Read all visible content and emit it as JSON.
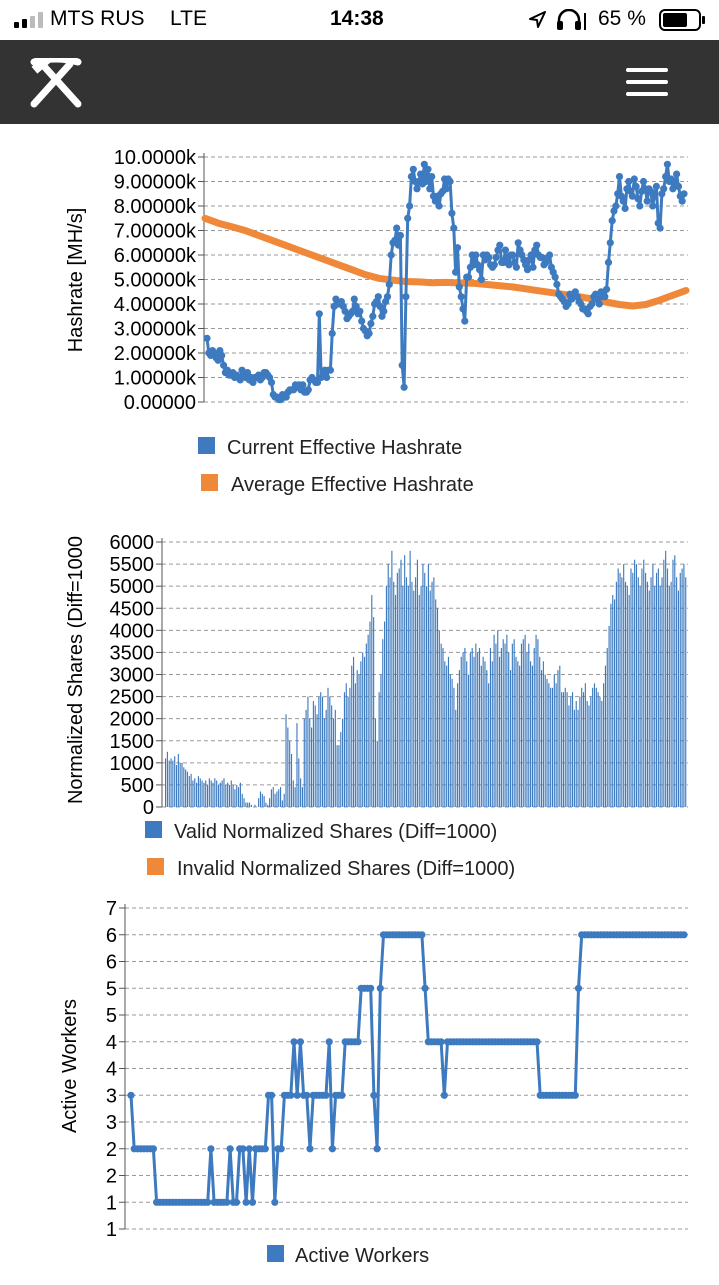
{
  "status_bar": {
    "carrier": "MTS RUS",
    "network": "LTE",
    "time": "14:38",
    "battery": "65 %"
  },
  "nav": {
    "logo_icon": "pickaxe-hammer-icon",
    "menu_icon": "hamburger-menu-icon",
    "background": "#333333"
  },
  "colors": {
    "blue": "#3d7abf",
    "orange": "#f0883a",
    "grid": "#9a9a9a"
  },
  "charts": [
    {
      "ylabel": "Hashrate [MH/s]",
      "ticks": [
        "0.00000",
        "1.00000k",
        "2.00000k",
        "3.00000k",
        "4.00000k",
        "5.00000k",
        "6.00000k",
        "7.00000k",
        "8.00000k",
        "9.00000k",
        "10.0000k"
      ],
      "legend": [
        "Current Effective Hashrate",
        "Average Effective Hashrate"
      ]
    },
    {
      "ylabel": "Normalized Shares (Diff=1000",
      "ticks": [
        "0",
        "500",
        "1000",
        "1500",
        "2000",
        "2500",
        "3000",
        "3500",
        "4000",
        "4500",
        "5000",
        "5500",
        "6000"
      ],
      "legend": [
        "Valid Normalized Shares (Diff=1000)",
        "Invalid Normalized Shares (Diff=1000)"
      ]
    },
    {
      "ylabel": "Active Workers",
      "ticks": [
        "1",
        "1",
        "2",
        "2",
        "3",
        "3",
        "4",
        "4",
        "5",
        "5",
        "6",
        "6",
        "7"
      ],
      "legend": [
        "Active Workers"
      ]
    }
  ],
  "chart_data": [
    {
      "type": "line",
      "ylabel": "Hashrate [MH/s]",
      "ylim": [
        0,
        10000
      ],
      "grid": true,
      "legend_position": "bottom",
      "series": [
        {
          "name": "Current Effective Hashrate",
          "color": "#3d7abf",
          "values": [
            2600,
            2000,
            1900,
            2100,
            2000,
            1800,
            1700,
            2100,
            1900,
            1500,
            1200,
            1300,
            1100,
            1100,
            1200,
            1000,
            1100,
            1000,
            900,
            1300,
            1100,
            1000,
            1200,
            900,
            1000,
            800,
            1000,
            1000,
            1100,
            900,
            1000,
            1200,
            1200,
            1100,
            1000,
            800,
            300,
            200,
            200,
            100,
            100,
            300,
            200,
            200,
            400,
            500,
            500,
            500,
            700,
            600,
            700,
            500,
            700,
            400,
            400,
            500,
            900,
            1000,
            900,
            800,
            800,
            3600,
            1000,
            1100,
            1300,
            1000,
            1300,
            1300,
            2800,
            3900,
            4200,
            4000,
            4000,
            4100,
            3900,
            3700,
            3400,
            3500,
            3600,
            3700,
            4200,
            3900,
            3600,
            3700,
            3300,
            3000,
            2900,
            2700,
            2800,
            3200,
            3500,
            4000,
            4100,
            4300,
            3900,
            3500,
            3700,
            4100,
            4300,
            4800,
            6000,
            6500,
            6600,
            7100,
            6400,
            6800,
            1500,
            600,
            4300,
            7500,
            8000,
            9200,
            9500,
            9000,
            8700,
            9000,
            9300,
            8900,
            9700,
            9000,
            9500,
            8700,
            9200,
            8400,
            8200,
            8400,
            8000,
            8500,
            8600,
            9100,
            8700,
            9100,
            9000,
            7700,
            7100,
            5300,
            6300,
            4700,
            4300,
            3800,
            3300,
            5100,
            5100,
            5500,
            6000,
            5600,
            6000,
            5600,
            5400,
            5000,
            6000,
            5800,
            6000,
            5900,
            5600,
            5500,
            5600,
            5900,
            6200,
            6400,
            5700,
            5700,
            6200,
            5900,
            5600,
            6000,
            6000,
            5700,
            5500,
            6500,
            6200,
            6000,
            5800,
            5600,
            5400,
            5800,
            6000,
            5500,
            6200,
            6400,
            6000,
            5900,
            5900,
            5600,
            5700,
            5900,
            6000,
            5500,
            5300,
            5100,
            4800,
            4400,
            4300,
            4200,
            4100,
            3900,
            4000,
            4400,
            4200,
            4400,
            4500,
            4300,
            4100,
            4000,
            3800,
            3800,
            3700,
            3600,
            3900,
            4000,
            4300,
            4400,
            4200,
            4000,
            4500,
            4300,
            4300,
            4600,
            5700,
            6500,
            7400,
            7800,
            8000,
            8500,
            9200,
            8400,
            8200,
            7900,
            8700,
            9000,
            8600,
            8400,
            9100,
            8800,
            8300,
            8000,
            8600,
            9000,
            8700,
            8200,
            8700,
            8600,
            8000,
            8400,
            8800,
            7300,
            7100,
            8500,
            8700,
            9200,
            9700,
            9000,
            9100,
            8700,
            8900,
            9300,
            8800,
            8400,
            8200,
            8500
          ]
        },
        {
          "name": "Average Effective Hashrate",
          "color": "#f0883a",
          "values": [
            7500,
            7300,
            7150,
            7000,
            6800,
            6600,
            6400,
            6200,
            6000,
            5800,
            5600,
            5400,
            5200,
            5050,
            4980,
            4920,
            4900,
            4870,
            4880,
            4860,
            4850,
            4800,
            4750,
            4700,
            4620,
            4540,
            4460,
            4380,
            4300,
            4200,
            4080,
            3980,
            3920,
            3980,
            4150,
            4350,
            4550
          ]
        }
      ]
    },
    {
      "type": "bar",
      "ylabel": "Normalized Shares (Diff=1000",
      "ylim": [
        0,
        6000
      ],
      "grid": true,
      "legend_position": "bottom",
      "series": [
        {
          "name": "Valid Normalized Shares (Diff=1000)",
          "color": "#3d7abf",
          "values": [
            1100,
            1250,
            1050,
            1100,
            1050,
            1150,
            950,
            1200,
            1000,
            1000,
            900,
            850,
            800,
            700,
            750,
            600,
            650,
            550,
            700,
            650,
            600,
            550,
            600,
            500,
            650,
            600,
            550,
            650,
            600,
            500,
            550,
            600,
            650,
            500,
            550,
            500,
            600,
            500,
            400,
            500,
            450,
            550,
            300,
            200,
            100,
            100,
            100,
            50,
            0,
            50,
            0,
            200,
            350,
            300,
            250,
            100,
            50,
            200,
            400,
            450,
            300,
            350,
            400,
            450,
            150,
            300,
            2100,
            1800,
            1500,
            1200,
            600,
            450,
            1900,
            1100,
            650,
            450,
            2000,
            2200,
            2500,
            2000,
            1800,
            2400,
            2300,
            2100,
            2500,
            2600,
            2500,
            2000,
            2200,
            2700,
            2500,
            2300,
            2000,
            2200,
            1400,
            1400,
            1700,
            2000,
            2600,
            2800,
            2500,
            2700,
            3200,
            3400,
            2800,
            3100,
            3000,
            3300,
            3500,
            3400,
            3700,
            3900,
            4200,
            4800,
            4300,
            2000,
            1500,
            2600,
            3000,
            3800,
            4200,
            5000,
            5500,
            5200,
            5800,
            5100,
            4800,
            5300,
            5400,
            5600,
            5000,
            5700,
            5200,
            5000,
            5800,
            5100,
            4900,
            5200,
            5600,
            4800,
            5000,
            5500,
            5300,
            5000,
            5500,
            4900,
            5100,
            5200,
            4700,
            4500,
            4000,
            3700,
            3600,
            3300,
            3200,
            3400,
            3000,
            2900,
            2700,
            2200,
            2800,
            3100,
            3400,
            3500,
            3600,
            3300,
            3000,
            3500,
            3600,
            3400,
            3700,
            3500,
            3600,
            3200,
            3400,
            3300,
            3100,
            2800,
            3600,
            3300,
            3900,
            3700,
            4000,
            3400,
            3600,
            3800,
            3700,
            3900,
            3500,
            3100,
            3700,
            3800,
            3400,
            3300,
            3200,
            3700,
            3800,
            3900,
            3500,
            3700,
            3300,
            3200,
            3600,
            3900,
            3800,
            3400,
            3100,
            3300,
            3000,
            2900,
            2800,
            2700,
            2700,
            3000,
            2800,
            3100,
            3200,
            2600,
            2600,
            2700,
            2600,
            2300,
            2500,
            2600,
            2200,
            2400,
            2200,
            2500,
            2700,
            2600,
            2800,
            2400,
            2300,
            2500,
            2700,
            2800,
            2700,
            2600,
            2500,
            2400,
            2800,
            3200,
            3600,
            4100,
            4600,
            4800,
            4700,
            5100,
            5400,
            5300,
            5200,
            5500,
            5100,
            5000,
            4800,
            5400,
            5300,
            5600,
            5500,
            5200,
            5000,
            5400,
            5600,
            5300,
            5100,
            4900,
            5200,
            5500,
            5000,
            5300,
            5400,
            5000,
            5200,
            5600,
            5800,
            5400,
            5000,
            5100,
            5600,
            5700,
            5200,
            4900,
            5300,
            5400,
            5500,
            5200
          ]
        },
        {
          "name": "Invalid Normalized Shares (Diff=1000)",
          "color": "#f0883a",
          "values": []
        }
      ]
    },
    {
      "type": "line",
      "ylabel": "Active Workers",
      "ylim": [
        0.5,
        6.5
      ],
      "grid": true,
      "legend_position": "bottom",
      "series": [
        {
          "name": "Active Workers",
          "color": "#3d7abf",
          "values": [
            3,
            2,
            2,
            2,
            2,
            2,
            2,
            2,
            1,
            1,
            1,
            1,
            1,
            1,
            1,
            1,
            1,
            1,
            1,
            1,
            1,
            1,
            1,
            1,
            1,
            2,
            1,
            1,
            1,
            1,
            1,
            2,
            1,
            1,
            2,
            2,
            1,
            2,
            1,
            2,
            2,
            2,
            2,
            3,
            3,
            1,
            2,
            2,
            3,
            3,
            3,
            4,
            3,
            4,
            3,
            3,
            2,
            3,
            3,
            3,
            3,
            3,
            4,
            2,
            3,
            3,
            3,
            4,
            4,
            4,
            4,
            4,
            5,
            5,
            5,
            5,
            3,
            2,
            5,
            6,
            6,
            6,
            6,
            6,
            6,
            6,
            6,
            6,
            6,
            6,
            6,
            6,
            5,
            4,
            4,
            4,
            4,
            4,
            3,
            4,
            4,
            4,
            4,
            4,
            4,
            4,
            4,
            4,
            4,
            4,
            4,
            4,
            4,
            4,
            4,
            4,
            4,
            4,
            4,
            4,
            4,
            4,
            4,
            4,
            4,
            4,
            4,
            4,
            3,
            3,
            3,
            3,
            3,
            3,
            3,
            3,
            3,
            3,
            3,
            3,
            5,
            6,
            6,
            6,
            6,
            6,
            6,
            6,
            6,
            6,
            6,
            6,
            6,
            6,
            6,
            6,
            6,
            6,
            6,
            6,
            6,
            6,
            6,
            6,
            6,
            6,
            6,
            6,
            6,
            6,
            6,
            6,
            6,
            6
          ]
        }
      ]
    }
  ]
}
